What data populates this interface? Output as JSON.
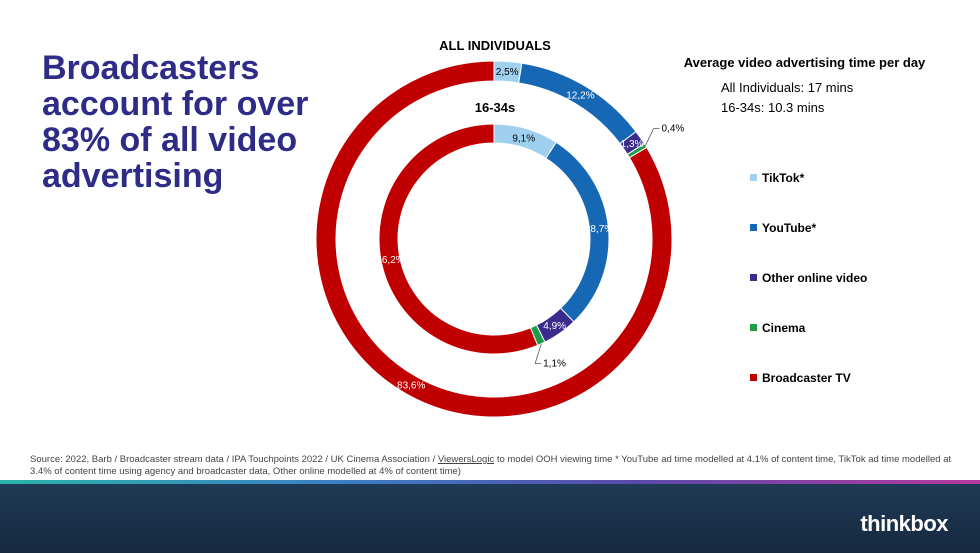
{
  "headline": "Broadcasters account for over 83% of all video advertising",
  "colors": {
    "tiktok": "#9fd0f0",
    "youtube": "#1768b4",
    "other_online_video": "#3a2c8c",
    "cinema": "#1f9c4a",
    "broadcaster_tv": "#c00000",
    "headline": "#2e2c86"
  },
  "info": {
    "title": "Average video advertising time per day",
    "lines": [
      "All Individuals: 17 mins",
      "16-34s: 10.3 mins"
    ]
  },
  "chart_data": {
    "type": "donut",
    "title": "ALL INDIVIDUALS",
    "categories": [
      "TikTok*",
      "YouTube*",
      "Other online video",
      "Cinema",
      "Broadcaster TV"
    ],
    "series": [
      {
        "name": "ALL INDIVIDUALS",
        "values": [
          2.5,
          12.2,
          1.3,
          0.4,
          83.6
        ],
        "labels": [
          "2,5%",
          "12,2%",
          "1,3%",
          "0,4%",
          "83,6%"
        ]
      },
      {
        "name": "16-34s",
        "values": [
          9.1,
          28.7,
          4.9,
          1.1,
          56.2
        ],
        "labels": [
          "9,1%",
          "28,7%",
          "4,9%",
          "1,1%",
          "56,2%"
        ]
      }
    ],
    "legend_position": "right"
  },
  "source": {
    "before_link": "Source: 2022, Barb / Broadcaster stream data / IPA Touchpoints 2022 / UK Cinema Association / ",
    "link": "ViewersLogic",
    "after_link": " to model OOH viewing time * YouTube ad time modelled at 4.1% of content time, TikTok ad time modelled at 3.4% of content time using agency and broadcaster data, Other online modelled at 4% of content time)"
  },
  "footer": {
    "logo": "thinkbox"
  }
}
